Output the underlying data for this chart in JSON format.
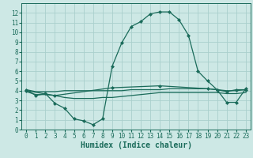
{
  "xlabel": "Humidex (Indice chaleur)",
  "bg_color": "#cde8e5",
  "grid_color": "#aacfcc",
  "line_color": "#1a6b5a",
  "xlim": [
    -0.5,
    23.5
  ],
  "ylim": [
    0,
    13
  ],
  "xticks": [
    0,
    1,
    2,
    3,
    4,
    5,
    6,
    7,
    8,
    9,
    10,
    11,
    12,
    13,
    14,
    15,
    16,
    17,
    18,
    19,
    20,
    21,
    22,
    23
  ],
  "yticks": [
    0,
    1,
    2,
    3,
    4,
    5,
    6,
    7,
    8,
    9,
    10,
    11,
    12
  ],
  "line1_x": [
    0,
    1,
    2,
    3,
    4,
    5,
    6,
    7,
    8,
    9,
    10,
    11,
    12,
    13,
    14,
    15,
    16,
    17,
    18,
    19,
    20,
    21,
    22,
    23
  ],
  "line1_y": [
    4.1,
    3.5,
    3.7,
    2.7,
    2.2,
    1.1,
    0.9,
    0.5,
    1.1,
    6.5,
    8.9,
    10.6,
    11.1,
    11.9,
    12.1,
    12.1,
    11.3,
    9.7,
    6.0,
    5.0,
    4.1,
    2.8,
    2.8,
    4.2
  ],
  "line2_x": [
    0,
    1,
    2,
    3,
    4,
    5,
    6,
    7,
    8,
    9,
    10,
    11,
    12,
    13,
    14,
    15,
    16,
    17,
    18,
    19,
    20,
    21,
    22,
    23
  ],
  "line2_y": [
    4.1,
    3.9,
    3.9,
    3.9,
    4.0,
    4.0,
    4.0,
    4.0,
    4.0,
    4.0,
    4.0,
    4.1,
    4.1,
    4.1,
    4.1,
    4.2,
    4.2,
    4.2,
    4.2,
    4.2,
    4.1,
    4.0,
    4.0,
    4.1
  ],
  "line3_x": [
    0,
    1,
    2,
    3,
    4,
    5,
    6,
    7,
    8,
    9,
    10,
    11,
    12,
    13,
    14,
    15,
    16,
    17,
    18,
    19,
    20,
    21,
    22,
    23
  ],
  "line3_y": [
    3.9,
    3.6,
    3.6,
    3.5,
    3.3,
    3.2,
    3.2,
    3.2,
    3.3,
    3.3,
    3.4,
    3.5,
    3.6,
    3.7,
    3.8,
    3.8,
    3.8,
    3.8,
    3.8,
    3.8,
    3.8,
    3.7,
    3.7,
    3.8
  ],
  "line4_x": [
    0,
    3,
    9,
    14,
    19,
    20,
    21,
    22,
    23
  ],
  "line4_y": [
    4.0,
    3.5,
    4.3,
    4.5,
    4.2,
    4.1,
    3.9,
    4.1,
    4.1
  ],
  "marker": "D",
  "markersize": 2,
  "linewidth": 0.9,
  "tick_fontsize": 5.5,
  "xlabel_fontsize": 7
}
